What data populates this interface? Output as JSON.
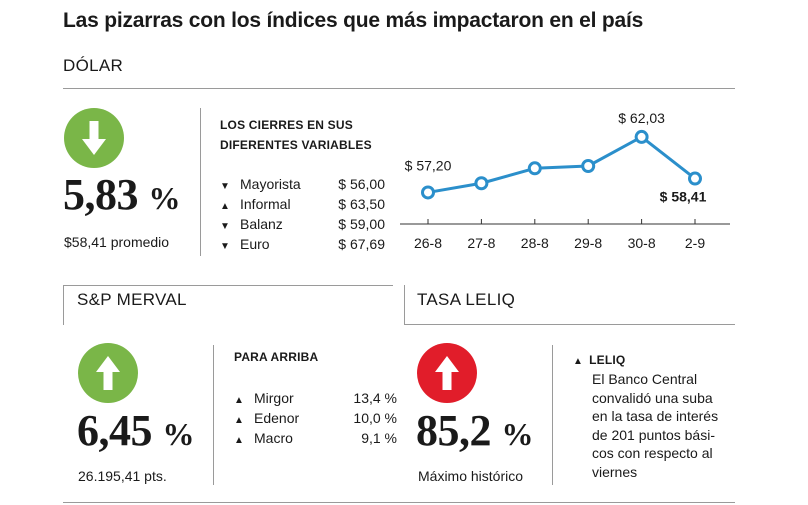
{
  "title": "Las pizarras con los índices que más impactaron en el país",
  "colors": {
    "up": "#7ab648",
    "down": "#7ab648",
    "alert": "#e11d2a",
    "line": "#2b8fcb"
  },
  "dolar": {
    "section": "DÓLAR",
    "icon": "arrow-down-icon",
    "value": "5,83",
    "unit": "%",
    "sub": "$58,41 promedio",
    "kicker_1": "LOS CIERRES EN SUS",
    "kicker_2": "DIFERENTES VARIABLES",
    "items": [
      {
        "dir": "▼",
        "name": "Mayorista",
        "value": "$ 56,00"
      },
      {
        "dir": "▲",
        "name": "Informal",
        "value": "$ 63,50"
      },
      {
        "dir": "▼",
        "name": "Balanz",
        "value": "$ 59,00"
      },
      {
        "dir": "▼",
        "name": "Euro",
        "value": "$ 67,69"
      }
    ]
  },
  "chart_data": {
    "type": "line",
    "categories": [
      "26-8",
      "27-8",
      "28-8",
      "29-8",
      "30-8",
      "2-9"
    ],
    "series": [
      {
        "values": [
          57.2,
          58.0,
          59.3,
          59.5,
          62.03,
          58.41
        ]
      }
    ],
    "data_labels": [
      {
        "index": 0,
        "text": "$ 57,20"
      },
      {
        "index": 4,
        "text": "$ 62,03"
      },
      {
        "index": 5,
        "text": "$ 58,41"
      }
    ],
    "ylim": [
      55.5,
      63.5
    ],
    "grid": false,
    "legend": "none"
  },
  "merval": {
    "section": "S&P MERVAL",
    "icon": "arrow-up-icon",
    "value": "6,45",
    "unit": "%",
    "sub": "26.195,41 pts.",
    "kicker": "PARA ARRIBA",
    "items": [
      {
        "dir": "▲",
        "name": "Mirgor",
        "value": "13,4 %"
      },
      {
        "dir": "▲",
        "name": "Edenor",
        "value": "10,0 %"
      },
      {
        "dir": "▲",
        "name": "Macro",
        "value": "9,1 %"
      }
    ]
  },
  "leliq": {
    "section": "TASA LELIQ",
    "icon": "arrow-up-icon",
    "value": "85,2",
    "unit": "%",
    "sub": "Máximo histórico",
    "kicker_dir": "▲",
    "kicker": "LELIQ",
    "lines": [
      "El Banco Central",
      "convalidó una suba",
      "en la tasa de interés",
      "de 201 puntos bási-",
      "cos con respecto al",
      "viernes"
    ]
  }
}
